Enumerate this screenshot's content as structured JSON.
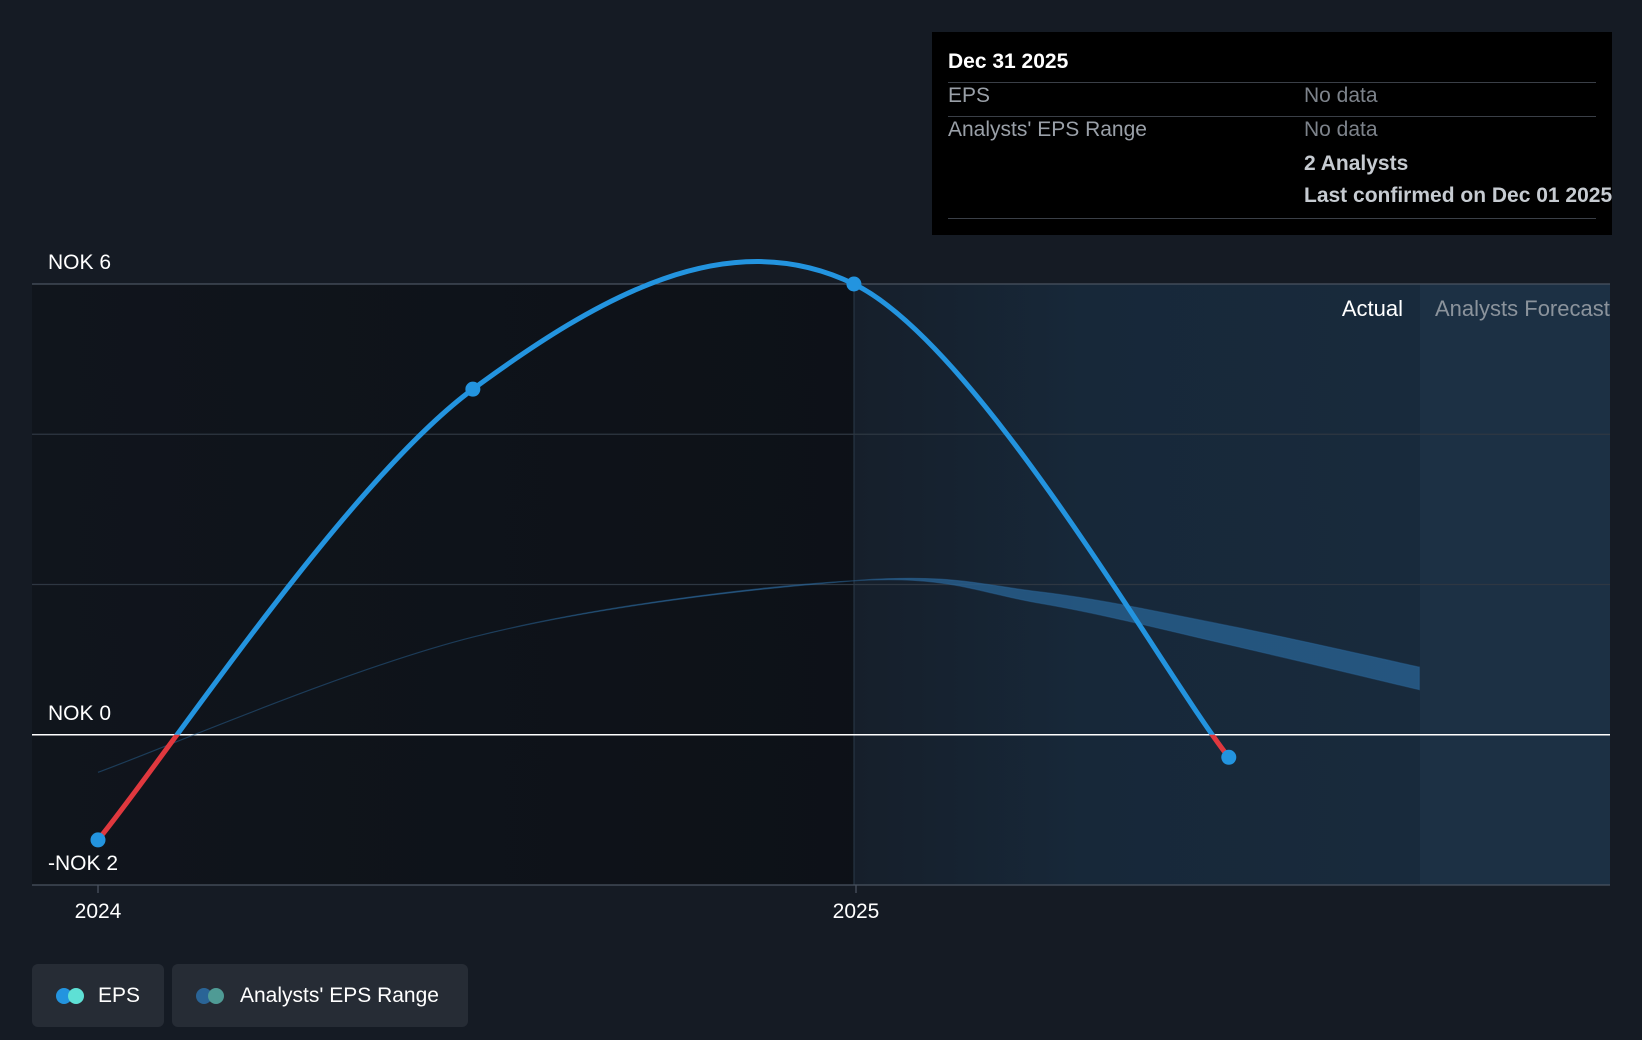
{
  "chart_data": {
    "type": "line",
    "y_unit_prefix": "NOK",
    "y_ticks": [
      "NOK 6",
      "NOK 0",
      "-NOK 2"
    ],
    "x_ticks": [
      "2024",
      "2025"
    ],
    "ylim": [
      -2,
      6
    ],
    "series": [
      {
        "name": "EPS",
        "color": "#2394df",
        "negative_color": "#e0383e",
        "points": [
          {
            "x": "2024-01-01",
            "y": -1.4
          },
          {
            "x": "2024-06-30",
            "y": 4.6
          },
          {
            "x": "2024-12-31",
            "y": 6.0
          },
          {
            "x": "2025-06-30",
            "y": -0.3
          }
        ]
      },
      {
        "name": "Analysts' EPS Range",
        "color": "#2a6496",
        "low": [
          {
            "x": "2024-01-01",
            "y": -0.5
          },
          {
            "x": "2024-06-30",
            "y": 1.3
          },
          {
            "x": "2024-12-31",
            "y": 2.05
          },
          {
            "x": "2025-03-31",
            "y": 1.75
          },
          {
            "x": "2025-06-30",
            "y": 1.2
          },
          {
            "x": "2025-09-30",
            "y": 0.6
          }
        ],
        "high": [
          {
            "x": "2024-01-01",
            "y": -0.5
          },
          {
            "x": "2024-06-30",
            "y": 1.3
          },
          {
            "x": "2024-12-31",
            "y": 2.05
          },
          {
            "x": "2025-03-31",
            "y": 1.9
          },
          {
            "x": "2025-06-30",
            "y": 1.45
          },
          {
            "x": "2025-09-30",
            "y": 0.9
          }
        ]
      }
    ],
    "regions": {
      "actual_label": "Actual",
      "forecast_label": "Analysts Forecast"
    },
    "grid": true,
    "legend_position": "bottom-left"
  },
  "tooltip": {
    "title": "Dec 31 2025",
    "rows": [
      {
        "label": "EPS",
        "value": "No data"
      },
      {
        "label": "Analysts' EPS Range",
        "value": "No data"
      }
    ],
    "analysts": "2 Analysts",
    "confirmed": "Last confirmed on Dec 01 2025"
  },
  "legend": [
    {
      "label": "EPS",
      "colors": [
        "#2394df",
        "#5ee0d5"
      ]
    },
    {
      "label": "Analysts' EPS Range",
      "colors": [
        "#2a6496",
        "#4f9b95"
      ]
    }
  ]
}
